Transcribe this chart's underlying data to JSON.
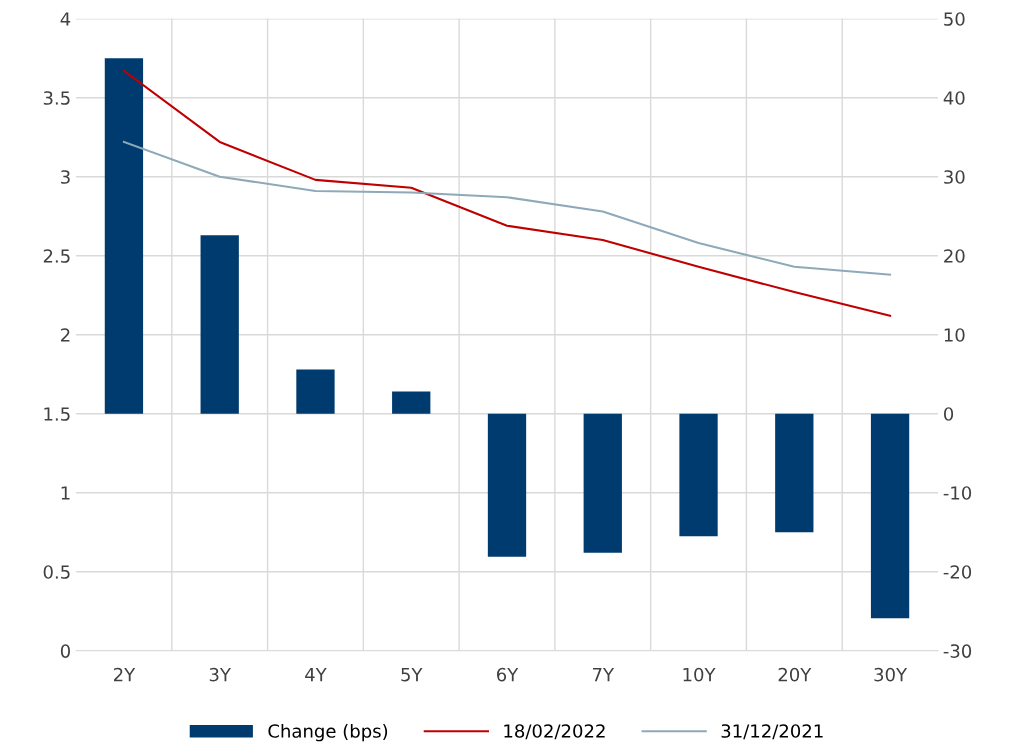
{
  "chart_data": {
    "type": "bar",
    "categories": [
      "2Y",
      "3Y",
      "4Y",
      "5Y",
      "6Y",
      "7Y",
      "10Y",
      "20Y",
      "30Y"
    ],
    "series": [
      {
        "name": "Change (bps)",
        "axis": "y2",
        "color": "#003b6f",
        "values": [
          45,
          22.6,
          5.6,
          2.8,
          -18.1,
          -17.6,
          -15.5,
          -15.0,
          -25.9
        ]
      },
      {
        "name": "18/02/2022",
        "type": "line",
        "axis": "y",
        "color": "#c00000",
        "values": [
          3.67,
          3.22,
          2.98,
          2.93,
          2.69,
          2.6,
          2.43,
          2.27,
          2.12
        ]
      },
      {
        "name": "31/12/2021",
        "type": "line",
        "axis": "y",
        "color": "#8ea9b8",
        "values": [
          3.22,
          3.0,
          2.91,
          2.9,
          2.87,
          2.78,
          2.58,
          2.43,
          2.38
        ]
      }
    ],
    "ylim": [
      0,
      4
    ],
    "yticks": [
      0,
      0.5,
      1,
      1.5,
      2,
      2.5,
      3,
      3.5,
      4
    ],
    "y2lim": [
      -30,
      50
    ],
    "y2ticks": [
      -30,
      -20,
      -10,
      0,
      10,
      20,
      30,
      40,
      50
    ],
    "grid": true,
    "legend": "bottom",
    "marker": "none",
    "line_style": "solid"
  }
}
